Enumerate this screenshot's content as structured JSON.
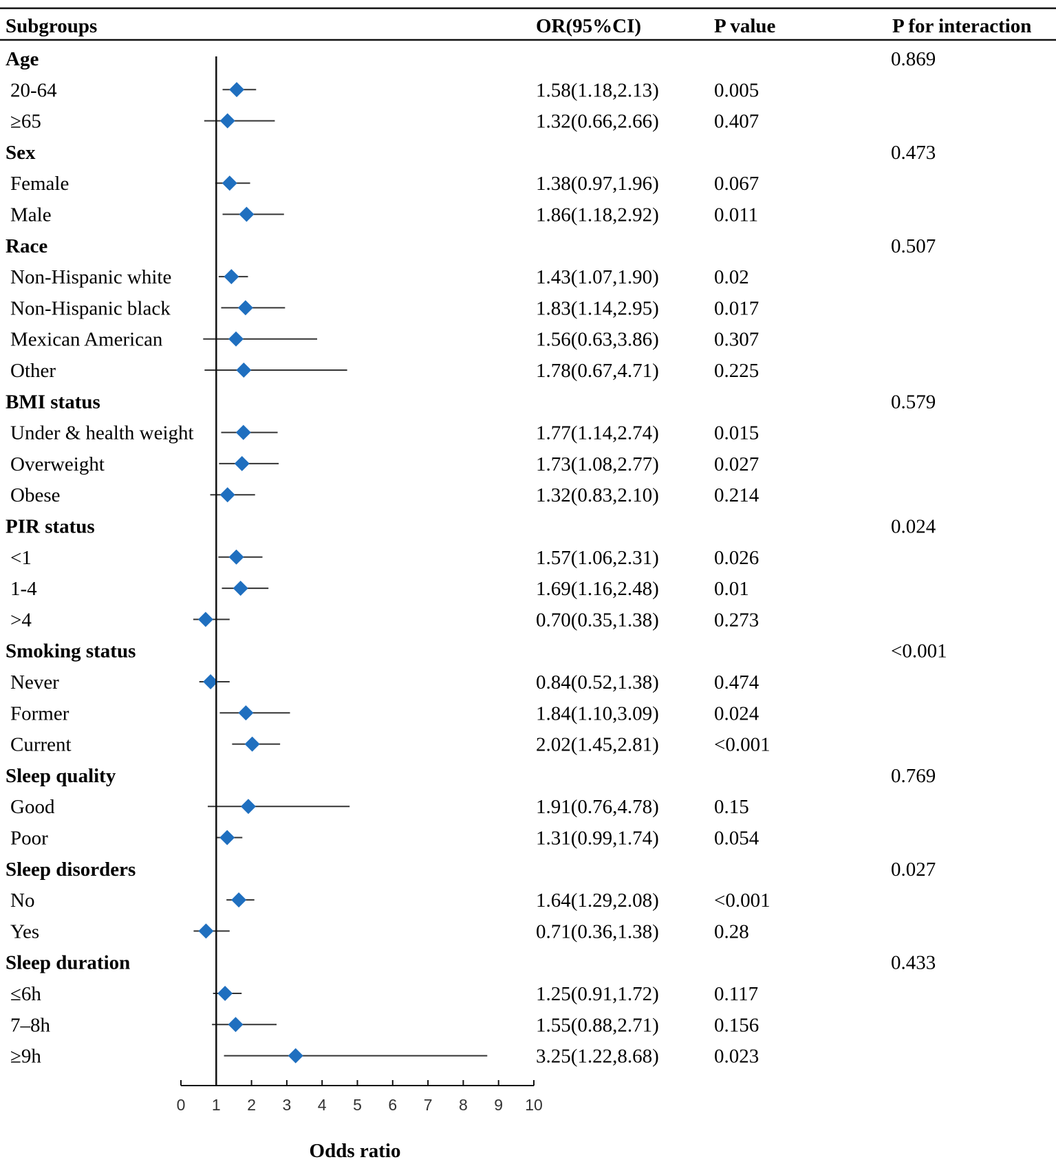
{
  "headers": {
    "subgroups": "Subgroups",
    "or": "OR(95%CI)",
    "p": "P value",
    "p_interaction": "P for interaction"
  },
  "colors": {
    "marker": "#1f6fbf",
    "line": "#333333"
  },
  "chart_data": {
    "type": "forest",
    "xlabel": "Odds ratio",
    "xlim": [
      0,
      10
    ],
    "xticks": [
      0,
      1,
      2,
      3,
      4,
      5,
      6,
      7,
      8,
      9,
      10
    ],
    "reference_line": 1,
    "rows": [
      {
        "kind": "group",
        "label": "Age",
        "p_interaction": "0.869"
      },
      {
        "kind": "sub",
        "label": "20-64",
        "or": 1.58,
        "lo": 1.18,
        "hi": 2.13,
        "ci_text": "1.58(1.18,2.13)",
        "p": "0.005"
      },
      {
        "kind": "sub",
        "label": "≥65",
        "or": 1.32,
        "lo": 0.66,
        "hi": 2.66,
        "ci_text": "1.32(0.66,2.66)",
        "p": "0.407"
      },
      {
        "kind": "group",
        "label": "Sex",
        "p_interaction": "0.473"
      },
      {
        "kind": "sub",
        "label": "Female",
        "or": 1.38,
        "lo": 0.97,
        "hi": 1.96,
        "ci_text": "1.38(0.97,1.96)",
        "p": "0.067"
      },
      {
        "kind": "sub",
        "label": "Male",
        "or": 1.86,
        "lo": 1.18,
        "hi": 2.92,
        "ci_text": "1.86(1.18,2.92)",
        "p": "0.011"
      },
      {
        "kind": "group",
        "label": "Race",
        "p_interaction": "0.507"
      },
      {
        "kind": "sub",
        "label": "Non-Hispanic white",
        "or": 1.43,
        "lo": 1.07,
        "hi": 1.9,
        "ci_text": "1.43(1.07,1.90)",
        "p": "0.02"
      },
      {
        "kind": "sub",
        "label": "Non-Hispanic black",
        "or": 1.83,
        "lo": 1.14,
        "hi": 2.95,
        "ci_text": "1.83(1.14,2.95)",
        "p": "0.017"
      },
      {
        "kind": "sub",
        "label": "Mexican American",
        "or": 1.56,
        "lo": 0.63,
        "hi": 3.86,
        "ci_text": "1.56(0.63,3.86)",
        "p": "0.307"
      },
      {
        "kind": "sub",
        "label": "Other",
        "or": 1.78,
        "lo": 0.67,
        "hi": 4.71,
        "ci_text": "1.78(0.67,4.71)",
        "p": "0.225"
      },
      {
        "kind": "group",
        "label": "BMI status",
        "p_interaction": "0.579"
      },
      {
        "kind": "sub",
        "label": "Under & health weight",
        "or": 1.77,
        "lo": 1.14,
        "hi": 2.74,
        "ci_text": "1.77(1.14,2.74)",
        "p": "0.015"
      },
      {
        "kind": "sub",
        "label": "Overweight",
        "or": 1.73,
        "lo": 1.08,
        "hi": 2.77,
        "ci_text": "1.73(1.08,2.77)",
        "p": "0.027"
      },
      {
        "kind": "sub",
        "label": "Obese",
        "or": 1.32,
        "lo": 0.83,
        "hi": 2.1,
        "ci_text": "1.32(0.83,2.10)",
        "p": "0.214"
      },
      {
        "kind": "group",
        "label": "PIR status",
        "p_interaction": "0.024"
      },
      {
        "kind": "sub",
        "label": "<1",
        "or": 1.57,
        "lo": 1.06,
        "hi": 2.31,
        "ci_text": "1.57(1.06,2.31)",
        "p": "0.026"
      },
      {
        "kind": "sub",
        "label": "1-4",
        "or": 1.69,
        "lo": 1.16,
        "hi": 2.48,
        "ci_text": "1.69(1.16,2.48)",
        "p": "0.01"
      },
      {
        "kind": "sub",
        "label": ">4",
        "or": 0.7,
        "lo": 0.35,
        "hi": 1.38,
        "ci_text": "0.70(0.35,1.38)",
        "p": "0.273"
      },
      {
        "kind": "group",
        "label": "Smoking status",
        "p_interaction": "<0.001"
      },
      {
        "kind": "sub",
        "label": "Never",
        "or": 0.84,
        "lo": 0.52,
        "hi": 1.38,
        "ci_text": "0.84(0.52,1.38)",
        "p": "0.474"
      },
      {
        "kind": "sub",
        "label": "Former",
        "or": 1.84,
        "lo": 1.1,
        "hi": 3.09,
        "ci_text": "1.84(1.10,3.09)",
        "p": "0.024"
      },
      {
        "kind": "sub",
        "label": "Current",
        "or": 2.02,
        "lo": 1.45,
        "hi": 2.81,
        "ci_text": "2.02(1.45,2.81)",
        "p": "<0.001"
      },
      {
        "kind": "group",
        "label": "Sleep quality",
        "p_interaction": "0.769"
      },
      {
        "kind": "sub",
        "label": "Good",
        "or": 1.91,
        "lo": 0.76,
        "hi": 4.78,
        "ci_text": "1.91(0.76,4.78)",
        "p": "0.15"
      },
      {
        "kind": "sub",
        "label": "Poor",
        "or": 1.31,
        "lo": 0.99,
        "hi": 1.74,
        "ci_text": "1.31(0.99,1.74)",
        "p": "0.054"
      },
      {
        "kind": "group",
        "label": "Sleep disorders",
        "p_interaction": "0.027"
      },
      {
        "kind": "sub",
        "label": "No",
        "or": 1.64,
        "lo": 1.29,
        "hi": 2.08,
        "ci_text": "1.64(1.29,2.08)",
        "p": "<0.001"
      },
      {
        "kind": "sub",
        "label": "Yes",
        "or": 0.71,
        "lo": 0.36,
        "hi": 1.38,
        "ci_text": "0.71(0.36,1.38)",
        "p": "0.28"
      },
      {
        "kind": "group",
        "label": "Sleep duration",
        "p_interaction": "0.433"
      },
      {
        "kind": "sub",
        "label": "≤6h",
        "or": 1.25,
        "lo": 0.91,
        "hi": 1.72,
        "ci_text": "1.25(0.91,1.72)",
        "p": "0.117"
      },
      {
        "kind": "sub",
        "label": "7–8h",
        "or": 1.55,
        "lo": 0.88,
        "hi": 2.71,
        "ci_text": "1.55(0.88,2.71)",
        "p": "0.156"
      },
      {
        "kind": "sub",
        "label": "≥9h",
        "or": 3.25,
        "lo": 1.22,
        "hi": 8.68,
        "ci_text": "3.25(1.22,8.68)",
        "p": "0.023"
      }
    ]
  }
}
